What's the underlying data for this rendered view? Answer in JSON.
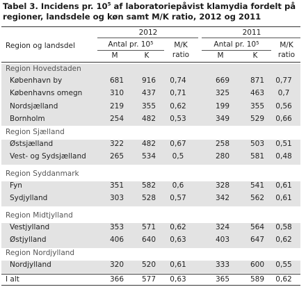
{
  "title_pre": "Tabel 3. Incidens pr. 10",
  "title_sup": "5",
  "title_post": " af laboratoriepåvist klamydia fordelt på regioner, landsdele og køn samt M/K ratio, 2012 og 2011",
  "headers": {
    "region_col": "Region og landsdel",
    "year1": "2012",
    "year2": "2011",
    "antal_pre": "Antal pr. 10",
    "antal_sup": "5",
    "mk": "M/K",
    "ratio": "ratio",
    "m": "M",
    "k": "K"
  },
  "rows": [
    {
      "type": "group",
      "label": "Region Hovedstaden"
    },
    {
      "type": "data",
      "label": "København by",
      "m12": "681",
      "k12": "916",
      "r12": "0,74",
      "m11": "669",
      "k11": "871",
      "r11": "0,77"
    },
    {
      "type": "data",
      "label": "Københavns omegn",
      "m12": "310",
      "k12": "437",
      "r12": "0,71",
      "m11": "325",
      "k11": "463",
      "r11": "0,7"
    },
    {
      "type": "data",
      "label": "Nordsjælland",
      "m12": "219",
      "k12": "355",
      "r12": "0,62",
      "m11": "199",
      "k11": "355",
      "r11": "0,56"
    },
    {
      "type": "data",
      "label": "Bornholm",
      "m12": "254",
      "k12": "482",
      "r12": "0,53",
      "m11": "349",
      "k11": "529",
      "r11": "0,66"
    },
    {
      "type": "group",
      "label": "Region Sjælland"
    },
    {
      "type": "data",
      "label": "Østsjælland",
      "m12": "322",
      "k12": "482",
      "r12": "0,67",
      "m11": "258",
      "k11": "503",
      "r11": "0,51"
    },
    {
      "type": "data",
      "label": "Vest- og Sydsjælland",
      "m12": "265",
      "k12": "534",
      "r12": "0,5",
      "m11": "280",
      "k11": "581",
      "r11": "0,48"
    },
    {
      "type": "group",
      "label": "Region Syddanmark"
    },
    {
      "type": "data",
      "label": "Fyn",
      "m12": "351",
      "k12": "582",
      "r12": "0,6",
      "m11": "328",
      "k11": "541",
      "r11": "0,61"
    },
    {
      "type": "data",
      "label": "Sydjylland",
      "m12": "303",
      "k12": "528",
      "r12": "0,57",
      "m11": "342",
      "k11": "562",
      "r11": "0,61"
    },
    {
      "type": "group",
      "label": "Region Midtjylland"
    },
    {
      "type": "data",
      "label": "Vestjylland",
      "m12": "353",
      "k12": "571",
      "r12": "0,62",
      "m11": "324",
      "k11": "564",
      "r11": "0,58"
    },
    {
      "type": "data",
      "label": "Østjylland",
      "m12": "406",
      "k12": "640",
      "r12": "0,63",
      "m11": "403",
      "k11": "647",
      "r11": "0,62"
    },
    {
      "type": "group",
      "label": "Region Nordjylland"
    },
    {
      "type": "data",
      "label": "Nordjylland",
      "m12": "320",
      "k12": "520",
      "r12": "0,61",
      "m11": "333",
      "k11": "600",
      "r11": "0,55"
    },
    {
      "type": "total",
      "label": "I alt",
      "m12": "366",
      "k12": "577",
      "r12": "0,63",
      "m11": "365",
      "k11": "589",
      "r11": "0,62"
    }
  ],
  "colors": {
    "band": "#e3e3e3",
    "group_text": "#555555",
    "rule": "#333333"
  }
}
